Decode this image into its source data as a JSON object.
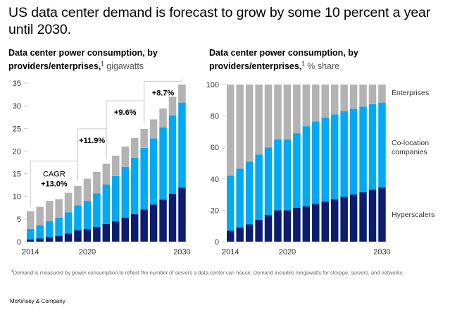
{
  "title": "US data center demand is forecast to grow by some 10 percent a year until 2030.",
  "footnote": {
    "marker": "1",
    "text": "Demand is measured by power consumption to reflect the number of servers a data center can house. Demand includes megawatts for storage, servers, and networks."
  },
  "source": "McKinsey & Company",
  "colors": {
    "hyperscalers": "#0b1d6e",
    "colocation": "#00a9f4",
    "enterprises": "#b3b3b3",
    "axis": "#cccccc",
    "bracket": "#c8c8c8"
  },
  "chart_data": [
    {
      "type": "bar",
      "stacked": true,
      "title": "Data center power consumption, by providers/enterprises,",
      "title_footnote": "1",
      "unit_label": "gigawatts",
      "xlabel": "",
      "ylabel": "",
      "ylim": [
        0,
        35
      ],
      "yticks": [
        0,
        5,
        10,
        15,
        20,
        25,
        30,
        35
      ],
      "categories": [
        "2014",
        "2015",
        "2016",
        "2017",
        "2018",
        "2019",
        "2020",
        "2021",
        "2022",
        "2023",
        "2024",
        "2025",
        "2026",
        "2027",
        "2028",
        "2029",
        "2030"
      ],
      "xtick_labels": {
        "0": "2014",
        "6": "2020",
        "16": "2030"
      },
      "grid": false,
      "series": [
        {
          "name": "Hyperscalers",
          "values": [
            0.5,
            0.7,
            1.0,
            1.3,
            1.8,
            2.5,
            2.8,
            3.3,
            3.9,
            4.5,
            5.3,
            6.1,
            7.1,
            8.2,
            9.3,
            10.6,
            11.9
          ]
        },
        {
          "name": "Co-location companies",
          "values": [
            2.3,
            2.9,
            3.5,
            4.0,
            4.7,
            5.5,
            6.2,
            7.4,
            8.7,
            10.0,
            11.2,
            12.4,
            13.6,
            14.6,
            15.9,
            17.3,
            18.8
          ]
        },
        {
          "name": "Enterprises",
          "values": [
            3.9,
            4.1,
            4.5,
            4.1,
            4.3,
            4.3,
            4.9,
            4.7,
            4.6,
            4.5,
            4.5,
            4.4,
            4.2,
            4.2,
            4.2,
            4.1,
            4.0
          ]
        }
      ],
      "annotations": [
        {
          "label_top": "CAGR",
          "label": "+13.0%",
          "from": "2014",
          "to": "2019"
        },
        {
          "label": "+11.9%",
          "from": "2019",
          "to": "2022"
        },
        {
          "label": "+9.6%",
          "from": "2022",
          "to": "2026"
        },
        {
          "label": "+8.7%",
          "from": "2026",
          "to": "2030"
        }
      ]
    },
    {
      "type": "bar",
      "stacked": true,
      "title": "Data center power consumption, by providers/enterprises,",
      "title_footnote": "1",
      "unit_label": "% share",
      "xlabel": "",
      "ylabel": "",
      "ylim": [
        0,
        100
      ],
      "yticks": [
        0,
        20,
        40,
        60,
        80,
        100
      ],
      "categories": [
        "2014",
        "2015",
        "2016",
        "2017",
        "2018",
        "2019",
        "2020",
        "2021",
        "2022",
        "2023",
        "2024",
        "2025",
        "2026",
        "2027",
        "2028",
        "2029",
        "2030"
      ],
      "xtick_labels": {
        "0": "2014",
        "6": "2020",
        "16": "2030"
      },
      "grid": false,
      "legend": "right",
      "series": [
        {
          "name": "Hyperscalers",
          "values": [
            7,
            9,
            11,
            14,
            17,
            20,
            20,
            21.5,
            22.5,
            24,
            25.5,
            27,
            28.5,
            30,
            31.5,
            33,
            34.5
          ]
        },
        {
          "name": "Co-location companies",
          "values": [
            35,
            37.5,
            40,
            41.5,
            43,
            45,
            45,
            47.5,
            51,
            52.5,
            53.5,
            54,
            54.5,
            54.5,
            54.5,
            54.5,
            54
          ]
        },
        {
          "name": "Enterprises",
          "values": [
            58,
            53.5,
            49,
            44.5,
            40,
            35,
            35,
            31,
            26.5,
            23.5,
            21,
            19,
            17,
            15.5,
            14,
            12.5,
            11.5
          ]
        }
      ],
      "legend_labels": {
        "enterprises": "Enterprises",
        "colocation_line1": "Co-location",
        "colocation_line2": "companies",
        "hyperscalers": "Hyperscalers"
      }
    }
  ]
}
